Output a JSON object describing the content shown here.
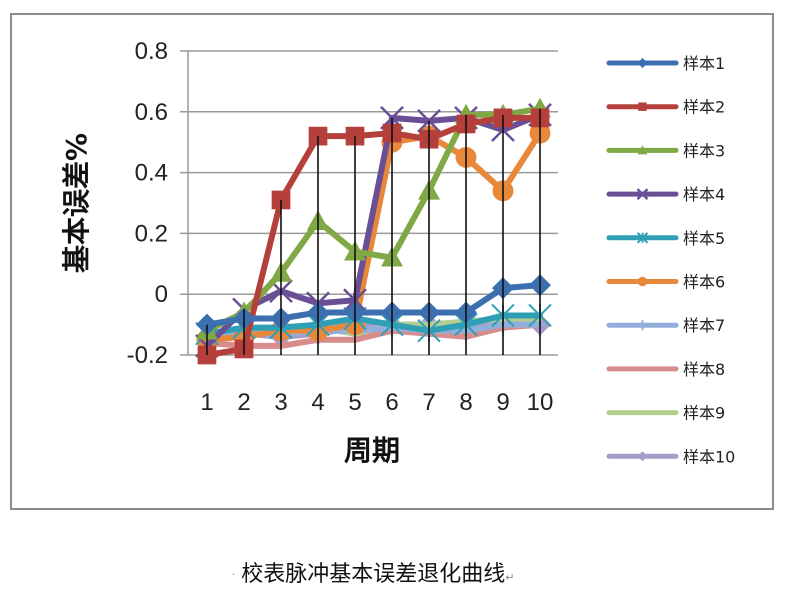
{
  "chart_data": {
    "type": "line",
    "title": "",
    "xlabel": "周期",
    "ylabel": "基本误差%",
    "x": [
      1,
      2,
      3,
      4,
      5,
      6,
      7,
      8,
      9,
      10
    ],
    "ylim": [
      -0.2,
      0.8
    ],
    "yticks": [
      "0.8",
      "0.6",
      "0.4",
      "0.2",
      "0",
      "-0.2"
    ],
    "grid": true,
    "legend_position": "right",
    "drop_lines": true,
    "series": [
      {
        "name": "样本1",
        "color": "#3b6fb0",
        "marker": "diamond",
        "values": [
          -0.1,
          -0.08,
          -0.08,
          -0.06,
          -0.06,
          -0.06,
          -0.06,
          -0.06,
          0.02,
          0.03
        ]
      },
      {
        "name": "样本2",
        "color": "#b5403b",
        "marker": "square",
        "values": [
          -0.2,
          -0.18,
          0.31,
          0.52,
          0.52,
          0.53,
          0.51,
          0.56,
          0.58,
          0.58
        ]
      },
      {
        "name": "样本3",
        "color": "#80a845",
        "marker": "triangle",
        "values": [
          -0.12,
          -0.06,
          0.07,
          0.24,
          0.14,
          0.12,
          0.34,
          0.59,
          0.59,
          0.61
        ]
      },
      {
        "name": "样本4",
        "color": "#6b4f96",
        "marker": "x",
        "values": [
          -0.17,
          -0.05,
          0.01,
          -0.03,
          -0.02,
          0.58,
          0.57,
          0.58,
          0.54,
          0.59
        ]
      },
      {
        "name": "样本5",
        "color": "#2f9fb5",
        "marker": "star",
        "values": [
          -0.13,
          -0.11,
          -0.11,
          -0.1,
          -0.08,
          -0.1,
          -0.12,
          -0.1,
          -0.07,
          -0.07
        ]
      },
      {
        "name": "样本6",
        "color": "#e8883a",
        "marker": "circle",
        "values": [
          -0.15,
          -0.14,
          -0.12,
          -0.12,
          -0.1,
          0.5,
          0.52,
          0.45,
          0.34,
          0.53
        ]
      },
      {
        "name": "样本7",
        "color": "#92aedb",
        "marker": "plus",
        "values": [
          -0.15,
          -0.13,
          -0.13,
          -0.12,
          -0.12,
          -0.11,
          -0.12,
          -0.12,
          -0.1,
          -0.1
        ]
      },
      {
        "name": "样本8",
        "color": "#d98c8c",
        "marker": "none",
        "values": [
          -0.16,
          -0.17,
          -0.17,
          -0.15,
          -0.15,
          -0.12,
          -0.13,
          -0.14,
          -0.11,
          -0.1
        ]
      },
      {
        "name": "样本9",
        "color": "#b3cf8e",
        "marker": "none",
        "values": [
          -0.14,
          -0.12,
          -0.12,
          -0.11,
          -0.13,
          -0.1,
          -0.1,
          -0.09,
          -0.08,
          -0.08
        ]
      },
      {
        "name": "样本10",
        "color": "#a99bc9",
        "marker": "diamond",
        "values": [
          -0.14,
          -0.13,
          -0.14,
          -0.13,
          -0.11,
          -0.1,
          -0.1,
          -0.11,
          -0.09,
          -0.1
        ]
      }
    ]
  },
  "caption": {
    "text": "校表脉冲基本误差退化曲线",
    "bullet": "·",
    "return_mark": "↵"
  }
}
